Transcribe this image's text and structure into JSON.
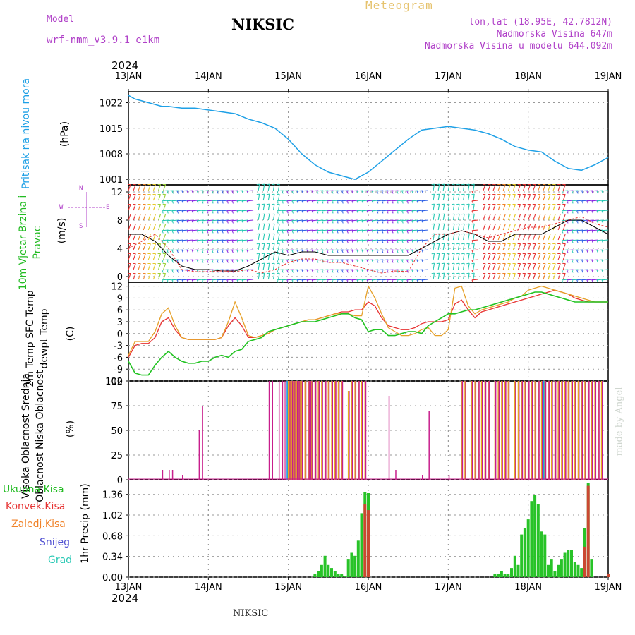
{
  "header": {
    "model_label": "Model",
    "model_name": "wrf-nmm_v3.9.1 e1km",
    "title": "NIKSIC",
    "meteogram": "Meteogram",
    "lonlat": "lon,lat (18.95E, 42.7812N)",
    "altitude": "Nadmorska Visina 647m",
    "altitude_model": "Nadmorska Visina u modelu 644.092m",
    "footer": "NIKSIC",
    "watermark": "made by Angel",
    "year": "2024"
  },
  "colors": {
    "pressure": "#1ea0e6",
    "temp2m": "#e83232",
    "sfc": "#e6a028",
    "dew": "#22c322",
    "high": "#1e9be6",
    "mid": "#e6aa1e",
    "low": "#c81e8c",
    "total": "#28c328",
    "conv": "#e63232",
    "snow": "#5050d2",
    "zal": "#f08228",
    "grad": "#28c8b4",
    "wind_black": "#000000",
    "wind_red": "#e63232",
    "panel_label_wind": "#22bb22",
    "wind_dir_label": "#b040c8"
  },
  "x_axis": {
    "labels": [
      "13JAN",
      "14JAN",
      "15JAN",
      "16JAN",
      "17JAN",
      "18JAN",
      "19JAN"
    ]
  },
  "chart_data": [
    {
      "type": "line",
      "title": "",
      "ylabel": "Pritisak na nivou mora",
      "unit": "(hPa)",
      "yticks": [
        1001,
        1008,
        1015,
        1022
      ],
      "ylim": [
        999.5,
        1025
      ],
      "x": [
        0,
        2,
        4,
        6,
        8,
        10,
        12,
        16,
        20,
        24,
        28,
        32,
        36,
        40,
        44,
        48,
        52,
        56,
        60,
        64,
        68,
        72,
        76,
        80,
        84,
        88,
        92,
        96,
        100,
        104,
        108,
        112,
        116,
        120,
        124,
        128,
        132,
        136,
        140,
        144
      ],
      "series": [
        {
          "name": "Pritisak na nivou mora",
          "values": [
            1024,
            1023,
            1022.5,
            1022,
            1021.5,
            1021,
            1021,
            1020.5,
            1020.5,
            1020,
            1019.5,
            1019,
            1017.5,
            1016.5,
            1015,
            1012,
            1008,
            1005,
            1003,
            1002,
            1001,
            1003,
            1006,
            1009,
            1012,
            1014.5,
            1015,
            1015.5,
            1015,
            1014.5,
            1013.5,
            1012,
            1010,
            1009,
            1008.5,
            1006,
            1004,
            1003.5,
            1005,
            1007
          ]
        }
      ]
    },
    {
      "type": "line",
      "title": "",
      "ylabel": "10m Vjetar Brzina i Pravac",
      "unit": "(m/s)",
      "direction_labels": {
        "n": "N",
        "s": "S",
        "w": "W",
        "e": "E"
      },
      "yticks": [
        0,
        4,
        8,
        12
      ],
      "ylim": [
        -0.8,
        13
      ],
      "x": [
        0,
        4,
        8,
        12,
        16,
        20,
        24,
        28,
        32,
        36,
        40,
        44,
        48,
        52,
        56,
        60,
        64,
        68,
        72,
        76,
        80,
        84,
        88,
        92,
        96,
        100,
        104,
        108,
        112,
        116,
        120,
        124,
        128,
        132,
        136,
        140,
        144
      ],
      "series": [
        {
          "name": "wind speed",
          "values": [
            6,
            6,
            5,
            3,
            1.5,
            1,
            1,
            0.8,
            0.8,
            1.5,
            2.5,
            3.5,
            3,
            3.5,
            3.5,
            3,
            3,
            3,
            3,
            3,
            3,
            3,
            4,
            5,
            6,
            6.5,
            6,
            5,
            5,
            6,
            6,
            6,
            7,
            8,
            8,
            7,
            6
          ]
        },
        {
          "name": "gust",
          "values": [
            4,
            5,
            6,
            4,
            1,
            0.7,
            0.7,
            0.8,
            0.7,
            1,
            0.5,
            1,
            2,
            2.5,
            2.5,
            2,
            2,
            1.5,
            1,
            0.5,
            0.8,
            0.7,
            4,
            6,
            6,
            6.5,
            6,
            5.5,
            6,
            6.5,
            7,
            7,
            7.5,
            8,
            8.5,
            7.5,
            7
          ]
        }
      ]
    },
    {
      "type": "line",
      "title": "",
      "ylabel": "2m Temp SFC Temp dewpt Temp",
      "unit": "(C)",
      "yticks": [
        -12,
        -9,
        -6,
        -3,
        0,
        3,
        6,
        9,
        12
      ],
      "ylim": [
        -12,
        13
      ],
      "x": [
        0,
        2,
        4,
        6,
        8,
        10,
        12,
        14,
        16,
        18,
        20,
        22,
        24,
        26,
        28,
        30,
        32,
        34,
        36,
        38,
        40,
        42,
        44,
        46,
        48,
        50,
        52,
        54,
        56,
        58,
        60,
        62,
        64,
        66,
        68,
        70,
        72,
        74,
        76,
        78,
        80,
        82,
        84,
        86,
        88,
        90,
        92,
        94,
        96,
        98,
        100,
        102,
        104,
        106,
        108,
        110,
        112,
        114,
        116,
        118,
        120,
        122,
        124,
        126,
        128,
        130,
        132,
        134,
        136,
        138,
        140,
        142,
        144
      ],
      "series": [
        {
          "name": "2m Temp",
          "values": [
            -6,
            -3,
            -2.5,
            -2.5,
            -1,
            3,
            4,
            1,
            -1,
            -1.5,
            -1.5,
            -1.5,
            -1.5,
            -1.5,
            -1,
            2,
            4,
            2,
            -1,
            -1,
            -0.5,
            0,
            1,
            1.5,
            2,
            2.5,
            3,
            3.5,
            3.5,
            4,
            4.5,
            5,
            5.5,
            5.5,
            6,
            6,
            8,
            7,
            4,
            2,
            1.5,
            1,
            1,
            1.5,
            2.5,
            3,
            3,
            3,
            3.5,
            7.5,
            8.5,
            6,
            4,
            5.5,
            6,
            6.5,
            7,
            7.5,
            8,
            8.5,
            9,
            9.5,
            10,
            10.5,
            11,
            10.5,
            10,
            9,
            8.5,
            8,
            8,
            8,
            8
          ]
        },
        {
          "name": "SFC Temp",
          "values": [
            -5.5,
            -2,
            -2,
            -2,
            0.5,
            5,
            6.5,
            2,
            -1,
            -1.5,
            -1.5,
            -1.5,
            -1.5,
            -1.5,
            -1,
            3,
            8,
            4,
            -0.5,
            -1,
            -0.5,
            0,
            1,
            1.5,
            2,
            2.5,
            3,
            3.5,
            3.5,
            4,
            4.5,
            5,
            5,
            5,
            4.5,
            4.5,
            12,
            9,
            5,
            1.5,
            0.5,
            -0.5,
            -0.5,
            0,
            1,
            1.5,
            -0.5,
            -0.5,
            1,
            11.5,
            12,
            7,
            5,
            6,
            6.5,
            7,
            7.5,
            8,
            9,
            9.5,
            11,
            11.5,
            12,
            11.5,
            11,
            10.5,
            10,
            9.5,
            9,
            8.5,
            8,
            8,
            8
          ]
        },
        {
          "name": "dewpt Temp",
          "values": [
            -7,
            -10,
            -10.5,
            -10.5,
            -8,
            -6,
            -4.5,
            -6,
            -7,
            -7.5,
            -7.5,
            -7,
            -7,
            -6,
            -5.5,
            -6,
            -4.5,
            -4,
            -2,
            -1.5,
            -1,
            0.5,
            1,
            1.5,
            2,
            2.5,
            3,
            3,
            3,
            3.5,
            4,
            4.5,
            5,
            5,
            4,
            3.5,
            0.5,
            1,
            1,
            -0.5,
            -0.5,
            0,
            0.5,
            0.5,
            0,
            2,
            3,
            4,
            5,
            5,
            5.5,
            6,
            6,
            6.5,
            7,
            7.5,
            8,
            8.5,
            9,
            9.5,
            10,
            10.5,
            10.5,
            10,
            9.5,
            9,
            8.5,
            8,
            8,
            8,
            8,
            8,
            8
          ]
        }
      ]
    },
    {
      "type": "bar",
      "title": "",
      "ylabel": "Visoka Oblacnost Srednja Oblacnost Niska Oblacnost",
      "unit": "(%)",
      "yticks": [
        0,
        25,
        50,
        75,
        100
      ],
      "ylim": [
        0,
        100
      ],
      "x": [
        10,
        12,
        13,
        16,
        21,
        22,
        42,
        43,
        45,
        46,
        46.5,
        47,
        48,
        48.5,
        49,
        49.5,
        50,
        50.5,
        51,
        51.5,
        52,
        53,
        54,
        54.5,
        55,
        56,
        57,
        58,
        59,
        60,
        61,
        62,
        63,
        64,
        66,
        67,
        68,
        69,
        70,
        71,
        72,
        73,
        74,
        75,
        78,
        80,
        88,
        90,
        96,
        100,
        101,
        103,
        104,
        105,
        106,
        107,
        108,
        110,
        111,
        112,
        113,
        114,
        116,
        117,
        118,
        119,
        120,
        121,
        122,
        123,
        124,
        125,
        126,
        127,
        128,
        129,
        130,
        131,
        132,
        133,
        134,
        135,
        136,
        137,
        138,
        139,
        140,
        141,
        142
      ],
      "series": [
        {
          "name": "Visoka Oblacnost",
          "values": [
            0,
            0,
            0,
            0,
            0,
            0,
            0,
            0,
            0,
            0,
            0,
            0,
            100,
            100,
            100,
            100,
            100,
            100,
            100,
            0,
            100,
            0,
            0,
            0,
            0,
            0,
            0,
            0,
            0,
            0,
            0,
            0,
            0,
            0,
            0,
            0,
            0,
            0,
            0,
            0,
            0,
            0,
            0,
            0,
            0,
            0,
            0,
            0,
            0,
            0,
            0,
            0,
            0,
            0,
            0,
            0,
            0,
            0,
            0,
            0,
            0,
            0,
            0,
            0,
            0,
            0,
            0,
            0,
            0,
            0,
            0,
            100,
            0,
            0,
            0,
            0,
            0,
            0,
            0,
            0,
            0,
            0,
            0,
            0,
            0,
            0,
            0,
            0,
            0
          ]
        },
        {
          "name": "Srednja Oblacnost",
          "values": [
            0,
            0,
            0,
            0,
            0,
            0,
            0,
            0,
            0,
            0,
            0,
            0,
            100,
            100,
            100,
            100,
            100,
            100,
            100,
            100,
            100,
            100,
            100,
            100,
            100,
            100,
            100,
            100,
            100,
            100,
            100,
            100,
            100,
            100,
            90,
            100,
            100,
            100,
            100,
            100,
            0,
            0,
            0,
            0,
            0,
            0,
            0,
            0,
            0,
            100,
            100,
            100,
            100,
            100,
            100,
            100,
            100,
            100,
            100,
            100,
            100,
            100,
            100,
            100,
            100,
            100,
            100,
            100,
            100,
            100,
            100,
            100,
            100,
            100,
            100,
            100,
            100,
            100,
            100,
            100,
            100,
            100,
            100,
            100,
            100,
            100,
            100,
            100,
            100
          ]
        },
        {
          "name": "Niska Oblacnost",
          "values": [
            10,
            10,
            10,
            5,
            50,
            75,
            100,
            100,
            100,
            100,
            100,
            100,
            100,
            100,
            100,
            100,
            100,
            100,
            100,
            100,
            100,
            100,
            100,
            100,
            100,
            100,
            100,
            100,
            100,
            100,
            100,
            100,
            100,
            100,
            90,
            100,
            100,
            100,
            100,
            100,
            0,
            0,
            0,
            0,
            85,
            10,
            5,
            70,
            5,
            100,
            100,
            100,
            100,
            100,
            100,
            100,
            100,
            100,
            100,
            100,
            100,
            100,
            100,
            100,
            100,
            100,
            100,
            100,
            100,
            100,
            100,
            100,
            100,
            100,
            100,
            100,
            100,
            100,
            100,
            100,
            100,
            100,
            100,
            100,
            100,
            100,
            100,
            100,
            100
          ]
        }
      ]
    },
    {
      "type": "bar",
      "title": "",
      "ylabel": "1hr Precip",
      "unit": "(mm)",
      "legend_labels": [
        "Ukupna Kisa",
        "Konvek.Kisa",
        "Zaledj.Kisa",
        "Snijeg",
        "Grad"
      ],
      "yticks": [
        0,
        0.34,
        0.68,
        1.02,
        1.36
      ],
      "ylim": [
        0,
        1.6
      ],
      "x": [
        56,
        57,
        58,
        59,
        60,
        61,
        62,
        63,
        64,
        65,
        66,
        67,
        68,
        69,
        70,
        71,
        72,
        110,
        111,
        112,
        113,
        114,
        115,
        116,
        117,
        118,
        119,
        120,
        121,
        122,
        123,
        124,
        125,
        126,
        127,
        128,
        129,
        130,
        131,
        132,
        133,
        134,
        135,
        136,
        137,
        138,
        139,
        140,
        141,
        142,
        143,
        144
      ],
      "series": [
        {
          "name": "Ukupna Kisa",
          "values": [
            0.05,
            0.1,
            0.2,
            0.35,
            0.2,
            0.15,
            0.1,
            0.05,
            0.05,
            0.02,
            0.3,
            0.4,
            0.35,
            0.6,
            1.05,
            1.4,
            1.38,
            0.05,
            0.05,
            0.1,
            0.05,
            0.05,
            0.15,
            0.35,
            0.2,
            0.7,
            0.8,
            0.95,
            1.25,
            1.35,
            1.2,
            0.75,
            0.7,
            0.2,
            0.3,
            0.1,
            0.2,
            0.3,
            0.4,
            0.45,
            0.45,
            0.25,
            0.2,
            0.15,
            0.8,
            1.55,
            0.3,
            0,
            0,
            0,
            0,
            0.05
          ]
        },
        {
          "name": "Konvek.Kisa",
          "values": [
            0,
            0,
            0,
            0,
            0,
            0,
            0,
            0,
            0,
            0,
            0,
            0,
            0,
            0,
            0,
            1.2,
            1.1,
            0,
            0,
            0,
            0,
            0,
            0,
            0,
            0,
            0,
            0,
            0,
            0,
            0,
            0,
            0,
            0,
            0,
            0,
            0,
            0,
            0,
            0,
            0,
            0,
            0,
            0,
            0,
            0.5,
            1.5,
            0,
            0,
            0,
            0,
            0,
            0.05
          ]
        }
      ]
    }
  ]
}
